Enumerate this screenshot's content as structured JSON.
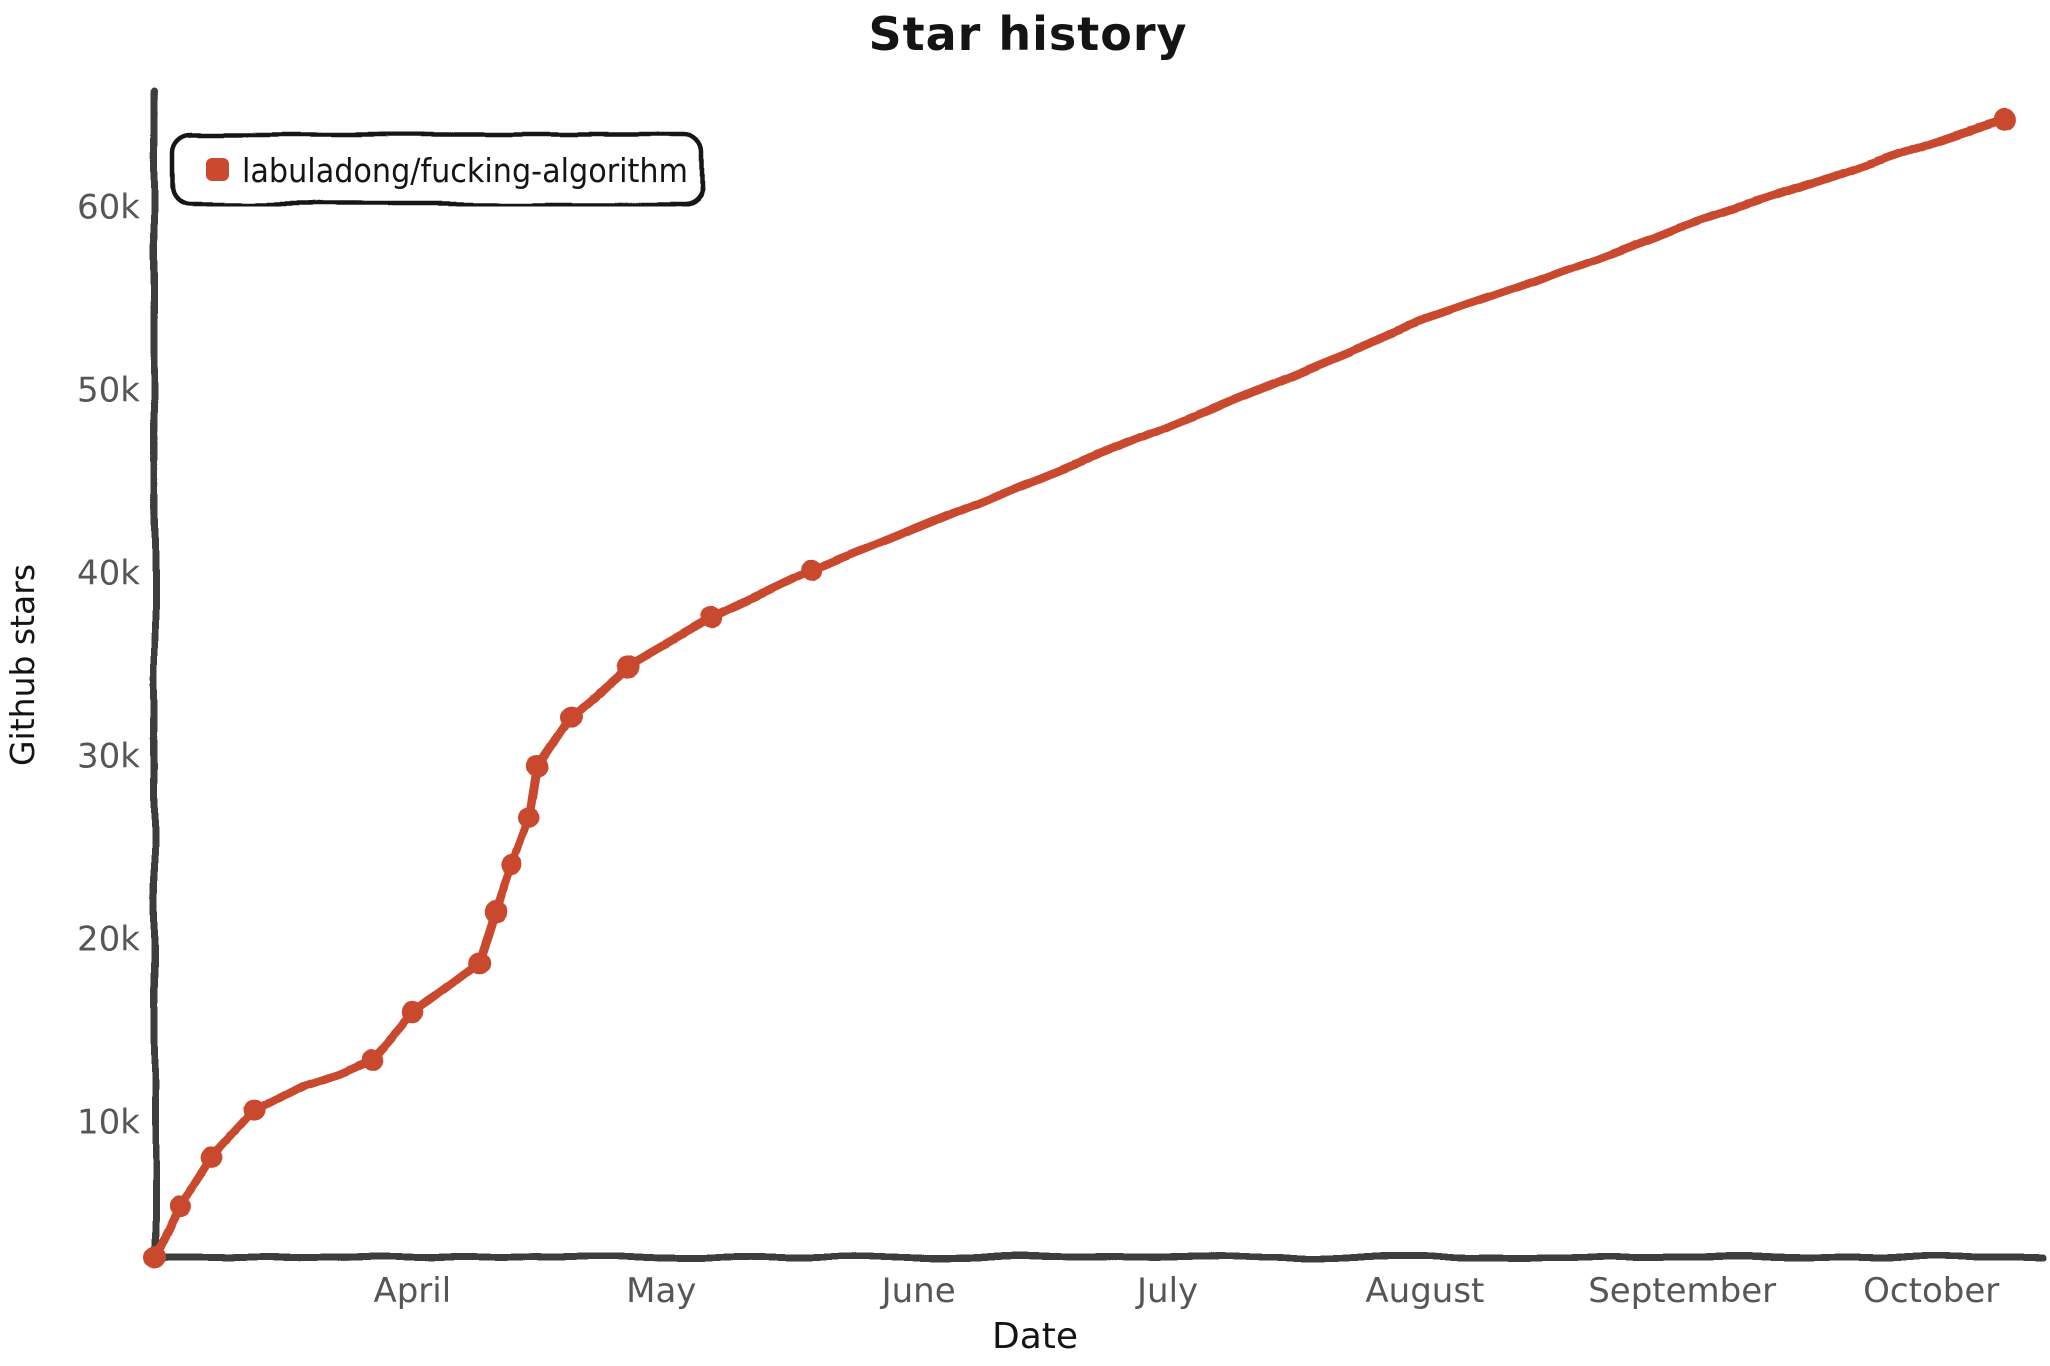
{
  "page": {
    "title": "Star history"
  },
  "colors": {
    "series": "#c94a2f",
    "axis": "#3e3e3e",
    "tick_text": "#565656",
    "text": "#141414",
    "background": "#ffffff"
  },
  "chart_data": {
    "type": "line",
    "title": "Star history",
    "xlabel": "Date",
    "ylabel": "Github stars",
    "grid": false,
    "legend": {
      "position": "top-left",
      "entries": [
        {
          "label": "labuladong/fucking-algorithm",
          "color": "#c94a2f"
        }
      ]
    },
    "x_axis": {
      "start_date": "2020-03-01",
      "end_date": "2020-10-14",
      "ticks": [
        {
          "label": "April",
          "date": "2020-04-01"
        },
        {
          "label": "May",
          "date": "2020-05-01"
        },
        {
          "label": "June",
          "date": "2020-06-01"
        },
        {
          "label": "July",
          "date": "2020-07-01"
        },
        {
          "label": "August",
          "date": "2020-08-01"
        },
        {
          "label": "September",
          "date": "2020-09-01"
        },
        {
          "label": "October",
          "date": "2020-10-01"
        }
      ]
    },
    "y_axis": {
      "min": 2600,
      "max": 66100,
      "ticks": [
        {
          "label": "10k",
          "value": 10000
        },
        {
          "label": "20k",
          "value": 20000
        },
        {
          "label": "30k",
          "value": 30000
        },
        {
          "label": "40k",
          "value": 40000
        },
        {
          "label": "50k",
          "value": 50000
        },
        {
          "label": "60k",
          "value": 60000
        }
      ]
    },
    "series": [
      {
        "name": "labuladong/fucking-algorithm",
        "color": "#c94a2f",
        "points": [
          {
            "date": "2020-03-01",
            "stars": 2600,
            "marker": true
          },
          {
            "date": "2020-03-04",
            "stars": 5300,
            "marker": true
          },
          {
            "date": "2020-03-08",
            "stars": 8100,
            "marker": true
          },
          {
            "date": "2020-03-13",
            "stars": 10600,
            "marker": true
          },
          {
            "date": "2020-03-19",
            "stars": 12000,
            "marker": false
          },
          {
            "date": "2020-03-23",
            "stars": 12600,
            "marker": false
          },
          {
            "date": "2020-03-27",
            "stars": 13400,
            "marker": true
          },
          {
            "date": "2020-04-01",
            "stars": 16000,
            "marker": true
          },
          {
            "date": "2020-04-09",
            "stars": 18700,
            "marker": true
          },
          {
            "date": "2020-04-11",
            "stars": 21400,
            "marker": true
          },
          {
            "date": "2020-04-13",
            "stars": 23900,
            "marker": true
          },
          {
            "date": "2020-04-15",
            "stars": 26600,
            "marker": true
          },
          {
            "date": "2020-04-16",
            "stars": 29400,
            "marker": true
          },
          {
            "date": "2020-04-20",
            "stars": 32100,
            "marker": true
          },
          {
            "date": "2020-04-27",
            "stars": 34900,
            "marker": true
          },
          {
            "date": "2020-05-07",
            "stars": 37500,
            "marker": true
          },
          {
            "date": "2020-05-19",
            "stars": 40100,
            "marker": true
          },
          {
            "date": "2020-06-01",
            "stars": 42500,
            "marker": false
          },
          {
            "date": "2020-06-15",
            "stars": 45100,
            "marker": false
          },
          {
            "date": "2020-07-01",
            "stars": 48000,
            "marker": false
          },
          {
            "date": "2020-07-15",
            "stars": 50600,
            "marker": false
          },
          {
            "date": "2020-08-01",
            "stars": 53800,
            "marker": false
          },
          {
            "date": "2020-08-15",
            "stars": 56000,
            "marker": false
          },
          {
            "date": "2020-09-01",
            "stars": 58900,
            "marker": false
          },
          {
            "date": "2020-09-15",
            "stars": 61000,
            "marker": false
          },
          {
            "date": "2020-10-01",
            "stars": 63500,
            "marker": false
          },
          {
            "date": "2020-10-10",
            "stars": 64800,
            "marker": true
          }
        ]
      }
    ]
  }
}
